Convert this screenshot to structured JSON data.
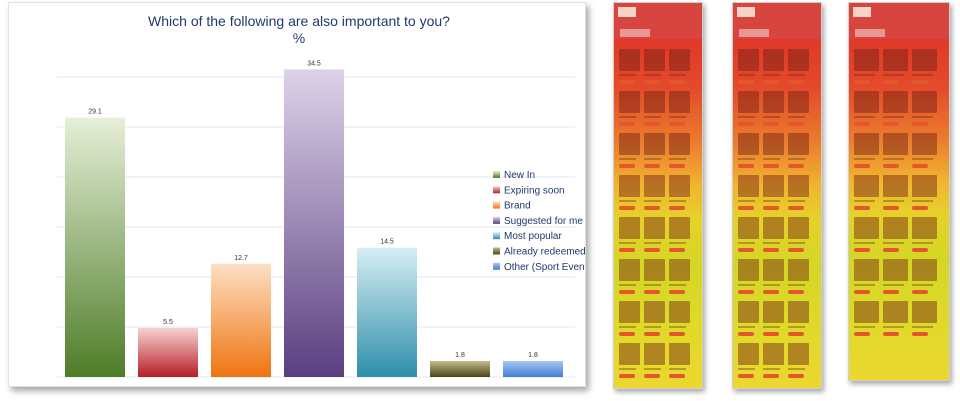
{
  "chart_data": {
    "type": "bar",
    "title": "Which of the following are also important to you?",
    "subtitle": "%",
    "categories": [
      "New In",
      "Expiring soon",
      "Brand",
      "Suggested for me",
      "Most popular",
      "Already redeemed",
      "Other (Sport Events)"
    ],
    "values": [
      29.1,
      5.5,
      12.7,
      34.5,
      14.5,
      1.8,
      1.8
    ],
    "value_labels": [
      "29.1",
      "5.5",
      "12.7",
      "34.5",
      "14.5",
      "1.8",
      "1.8"
    ],
    "ylim": [
      0,
      35
    ],
    "grid": true,
    "legend_position": "right",
    "colors": [
      [
        "#e6efd8",
        "#4e7d28"
      ],
      [
        "#f7d2d2",
        "#b51f26"
      ],
      [
        "#fde0c4",
        "#ef7410"
      ],
      [
        "#ddd2e8",
        "#5a3f80"
      ],
      [
        "#d6eef4",
        "#2e8faa"
      ],
      [
        "#c4bd8c",
        "#4a4418"
      ],
      [
        "#a8c8f4",
        "#3f7fd6"
      ]
    ]
  },
  "heatmaps": [
    {
      "sections": [
        "Offers"
      ]
    },
    {
      "sections": [
        "Events"
      ]
    },
    {
      "sections": [
        "Auctions"
      ]
    }
  ]
}
